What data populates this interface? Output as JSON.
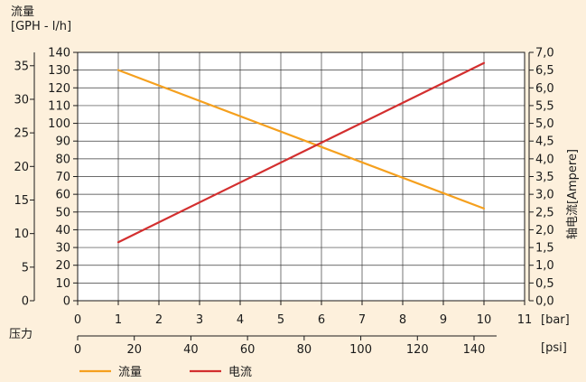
{
  "chart_data": {
    "type": "line",
    "left_axis_title": [
      "流量",
      "[GPH - l/h]"
    ],
    "right_axis_title": "轴电流[Ampere]",
    "x_axis_title": "压力",
    "bar_unit": "[bar]",
    "psi_unit": "[psi]",
    "xlim_bar": [
      0,
      11
    ],
    "x_ticks_bar": [
      "0",
      "1",
      "2",
      "3",
      "4",
      "5",
      "6",
      "7",
      "8",
      "9",
      "10",
      "11"
    ],
    "lph_lim": [
      0,
      140
    ],
    "lph_ticks": [
      "0",
      "10",
      "20",
      "30",
      "40",
      "50",
      "60",
      "70",
      "80",
      "90",
      "100",
      "110",
      "120",
      "130",
      "140"
    ],
    "gph_ticks": [
      "0",
      "5",
      "10",
      "15",
      "20",
      "25",
      "30",
      "35"
    ],
    "amp_ticks": [
      "0,0",
      "0,5",
      "1,0",
      "1,5",
      "2,0",
      "2,5",
      "3,0",
      "3,5",
      "4,0",
      "4,5",
      "5,0",
      "5,5",
      "6,0",
      "6,5",
      "7,0"
    ],
    "psi_ticks": [
      "0",
      "20",
      "40",
      "60",
      "80",
      "100",
      "120",
      "140"
    ],
    "grid": true,
    "legend_position": "bottom",
    "series": [
      {
        "name": "流量",
        "axis": "left",
        "color": "#f5a01e",
        "x": [
          1,
          10
        ],
        "y": [
          130,
          52
        ]
      },
      {
        "name": "电流",
        "axis": "right",
        "color": "#d32f2f",
        "x": [
          1,
          10
        ],
        "y": [
          1.65,
          6.7
        ]
      }
    ]
  }
}
